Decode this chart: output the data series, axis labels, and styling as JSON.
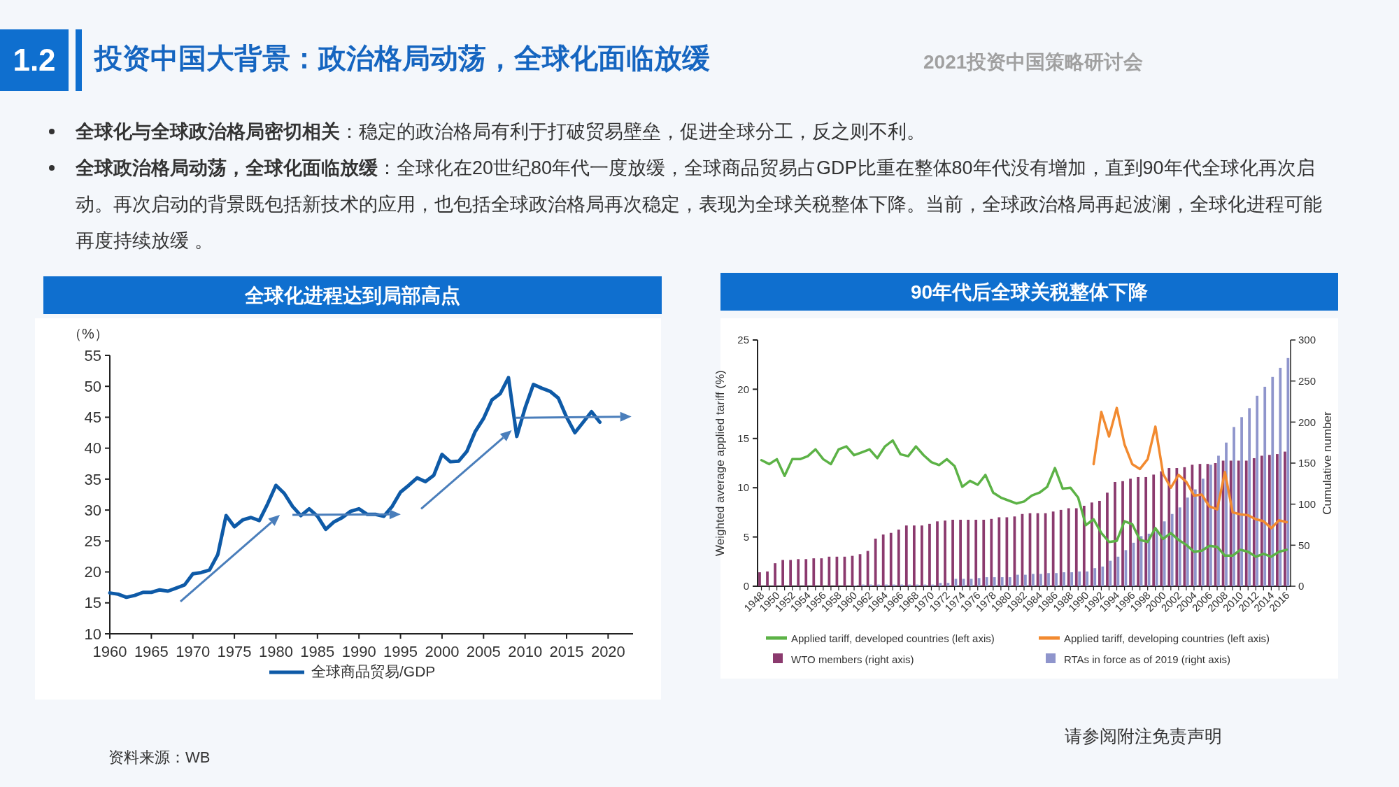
{
  "chart_data": [
    {
      "type": "line",
      "title": "全球化进程达到局部高点",
      "ylabel": "（%）",
      "xlim": [
        1960,
        2023
      ],
      "xticks": [
        1960,
        1965,
        1970,
        1975,
        1980,
        1985,
        1990,
        1995,
        2000,
        2005,
        2010,
        2015,
        2020
      ],
      "ylim": [
        10,
        55
      ],
      "yticks": [
        10,
        15,
        20,
        25,
        30,
        35,
        40,
        45,
        50,
        55
      ],
      "legend": "bottom",
      "series": [
        {
          "name": "全球商品贸易/GDP",
          "color": "#0e5aa7",
          "x": [
            1960,
            1961,
            1962,
            1963,
            1964,
            1965,
            1966,
            1967,
            1968,
            1969,
            1970,
            1971,
            1972,
            1973,
            1974,
            1975,
            1976,
            1977,
            1978,
            1979,
            1980,
            1981,
            1982,
            1983,
            1984,
            1985,
            1986,
            1987,
            1988,
            1989,
            1990,
            1991,
            1992,
            1993,
            1994,
            1995,
            1996,
            1997,
            1998,
            1999,
            2000,
            2001,
            2002,
            2003,
            2004,
            2005,
            2006,
            2007,
            2008,
            2009,
            2010,
            2011,
            2012,
            2013,
            2014,
            2015,
            2016,
            2017,
            2018,
            2019
          ],
          "values": [
            16.6,
            16.4,
            15.9,
            16.2,
            16.7,
            16.7,
            17.1,
            16.9,
            17.4,
            17.9,
            19.7,
            19.9,
            20.3,
            22.8,
            29.1,
            27.3,
            28.4,
            28.8,
            28.3,
            31.0,
            34.0,
            32.7,
            30.6,
            29.1,
            30.2,
            29.0,
            26.9,
            28.1,
            28.8,
            29.8,
            30.2,
            29.3,
            29.3,
            29.0,
            30.6,
            32.9,
            34.0,
            35.2,
            34.6,
            35.6,
            39.0,
            37.8,
            37.9,
            39.5,
            42.7,
            44.8,
            47.8,
            48.8,
            51.4,
            41.9,
            46.5,
            50.3,
            49.7,
            49.2,
            48.1,
            45.0,
            42.5,
            44.2,
            45.9,
            44.2
          ]
        }
      ],
      "annotations": [
        "1.2",
        "投资中国大背景：政治格局动荡，全球化面临放缓",
        "2021投资中国策略研讨会",
        "**全球化与全球政治格局密切相关**：稳定的政治格局有利于打破贸易壁垒，促进全球分工，反之则不利。",
        "**全球政治格局动荡，全球化面临放缓**：全球化在20世纪80年代一度放缓，全球商品贸易占GDP比重在整体80年代没有增加，直到90年代全球化再次启动。再次启动的背景既包括新技术的应用，也包括全球政治格局再次稳定，表现为全球关税整体下降。当前，全球政治格局再起波澜，全球化进程可能再度持续放缓 。",
        "资料来源：WB",
        "请参阅附注免责声明"
      ]
    },
    {
      "type": "bar",
      "title": "90年代后全球关税整体下降",
      "ylabel": "Weighted average applied tariff (%)",
      "y2label": "Cumulative number",
      "ylim": [
        0,
        25
      ],
      "yticks": [
        0,
        5,
        10,
        15,
        20,
        25
      ],
      "y2lim": [
        0,
        300
      ],
      "y2ticks": [
        0,
        50,
        100,
        150,
        200,
        250,
        300
      ],
      "legend": "bottom",
      "categories": [
        "1948",
        null,
        "1950",
        null,
        "1952",
        null,
        "1954",
        null,
        "1956",
        null,
        "1958",
        null,
        "1960",
        null,
        "1962",
        null,
        "1964",
        null,
        "1966",
        null,
        "1968",
        null,
        "1970",
        null,
        "1972",
        null,
        "1974",
        null,
        "1976",
        null,
        "1978",
        null,
        "1980",
        null,
        "1982",
        null,
        "1984",
        null,
        "1986",
        null,
        "1988",
        null,
        "1990",
        null,
        "1992",
        null,
        "1994",
        null,
        "1996",
        null,
        "1998",
        null,
        "2000",
        null,
        "2002",
        null,
        "2004",
        null,
        "2006",
        null,
        "2008",
        null,
        "2010",
        null,
        "2012",
        null,
        "2014",
        null,
        "2016"
      ],
      "series": [
        {
          "name": "Applied tariff, developed countries (left axis)",
          "type": "line",
          "color": "#5cb246",
          "values": [
            12.8,
            12.4,
            12.9,
            11.2,
            12.9,
            12.9,
            13.2,
            13.9,
            12.9,
            12.4,
            13.9,
            14.2,
            13.3,
            13.6,
            13.9,
            13.0,
            14.2,
            14.8,
            13.4,
            13.2,
            14.2,
            13.3,
            12.6,
            12.3,
            12.9,
            12.2,
            10.1,
            10.7,
            10.3,
            11.3,
            9.5,
            9.0,
            8.7,
            8.4,
            8.6,
            9.2,
            9.5,
            10.1,
            12.0,
            9.9,
            10.0,
            9.0,
            6.2,
            6.8,
            5.4,
            4.5,
            4.6,
            6.6,
            6.3,
            4.7,
            4.5,
            5.9,
            4.8,
            5.4,
            4.7,
            4.2,
            3.5,
            3.6,
            4.1,
            4.0,
            3.1,
            3.1,
            3.7,
            3.5,
            3.0,
            3.3,
            3.0,
            3.5,
            3.7
          ]
        },
        {
          "name": "Applied tariff, developing countries (left axis)",
          "type": "line",
          "color": "#f28a30",
          "values": [
            null,
            null,
            null,
            null,
            null,
            null,
            null,
            null,
            null,
            null,
            null,
            null,
            null,
            null,
            null,
            null,
            null,
            null,
            null,
            null,
            null,
            null,
            null,
            null,
            null,
            null,
            null,
            null,
            null,
            null,
            null,
            null,
            null,
            null,
            null,
            null,
            null,
            null,
            null,
            null,
            null,
            null,
            null,
            12.4,
            17.7,
            15.2,
            18.1,
            14.4,
            12.4,
            11.9,
            12.9,
            16.2,
            11.4,
            10.0,
            11.3,
            10.6,
            9.2,
            9.3,
            8.1,
            7.8,
            11.6,
            7.5,
            7.3,
            7.2,
            6.8,
            6.6,
            5.9,
            6.7,
            6.5
          ]
        },
        {
          "name": "WTO members (right axis)",
          "type": "bar",
          "axis": "y2",
          "color": "#8b3a6e",
          "values": [
            17,
            18,
            28,
            32,
            32,
            33,
            33,
            34,
            34,
            36,
            36,
            36,
            37,
            39,
            43,
            58,
            63,
            65,
            69,
            74,
            74,
            74,
            76,
            79,
            80,
            81,
            81,
            81,
            81,
            81,
            82,
            84,
            84,
            85,
            88,
            89,
            89,
            89,
            91,
            93,
            95,
            95,
            98,
            102,
            104,
            114,
            127,
            128,
            131,
            133,
            133,
            136,
            140,
            144,
            144,
            145,
            148,
            149,
            149,
            150,
            153,
            153,
            153,
            153,
            156,
            159,
            160,
            161,
            164
          ]
        },
        {
          "name": "RTAs in force as of 2019 (right axis)",
          "type": "bar",
          "axis": "y2",
          "color": "#8f95cc",
          "values": [
            0,
            0,
            0,
            0,
            0,
            0,
            0,
            0,
            0,
            0,
            0,
            0,
            1,
            2,
            2,
            2,
            2,
            2,
            2,
            2,
            2,
            2,
            2,
            4,
            4,
            9,
            9,
            9,
            10,
            11,
            11,
            11,
            11,
            14,
            14,
            15,
            15,
            16,
            16,
            17,
            17,
            18,
            18,
            22,
            24,
            31,
            36,
            44,
            53,
            61,
            64,
            69,
            79,
            88,
            96,
            108,
            118,
            131,
            148,
            159,
            175,
            194,
            206,
            217,
            232,
            243,
            255,
            266,
            278
          ]
        }
      ]
    }
  ]
}
